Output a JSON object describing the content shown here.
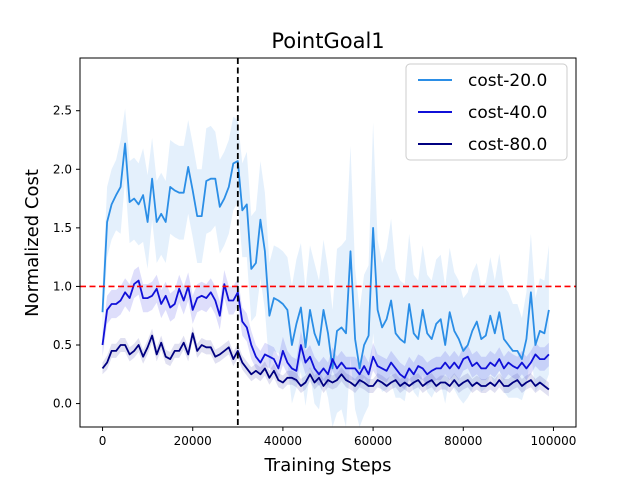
{
  "chart_data": {
    "type": "line",
    "title": "PointGoal1",
    "xlabel": "Training Steps",
    "ylabel": "Normalized Cost",
    "xlim": [
      -5000,
      105000
    ],
    "ylim": [
      -0.2,
      2.95
    ],
    "x_ticks": [
      0,
      20000,
      40000,
      60000,
      80000,
      100000
    ],
    "x_tick_labels": [
      "0",
      "20000",
      "40000",
      "60000",
      "80000",
      "100000"
    ],
    "y_ticks": [
      0.0,
      0.5,
      1.0,
      1.5,
      2.0,
      2.5
    ],
    "y_tick_labels": [
      "0.0",
      "0.5",
      "1.0",
      "1.5",
      "2.0",
      "2.5"
    ],
    "grid": false,
    "legend_position": "top-right",
    "threshold": {
      "y": 1.0,
      "color": "#ff0000",
      "style": "dashed"
    },
    "vertical_marker": {
      "x": 30000,
      "color": "#000000",
      "style": "dashed"
    },
    "series": [
      {
        "name": "cost-20.0",
        "color": "#2b8ee6",
        "band_color": "#2b8ee6",
        "x": [
          0,
          1000,
          2000,
          3000,
          4000,
          5000,
          6000,
          7000,
          8000,
          9000,
          10000,
          11000,
          12000,
          13000,
          14000,
          15000,
          16000,
          17000,
          18000,
          19000,
          20000,
          21000,
          22000,
          23000,
          24000,
          25000,
          26000,
          27000,
          28000,
          29000,
          30000,
          31000,
          32000,
          33000,
          34000,
          35000,
          36000,
          37000,
          38000,
          39000,
          40000,
          41000,
          42000,
          43000,
          44000,
          45000,
          46000,
          47000,
          48000,
          49000,
          50000,
          51000,
          52000,
          53000,
          54000,
          55000,
          56000,
          57000,
          58000,
          59000,
          60000,
          61000,
          62000,
          63000,
          64000,
          65000,
          66000,
          67000,
          68000,
          69000,
          70000,
          71000,
          72000,
          73000,
          74000,
          75000,
          76000,
          77000,
          78000,
          79000,
          80000,
          81000,
          82000,
          83000,
          84000,
          85000,
          86000,
          87000,
          88000,
          89000,
          90000,
          91000,
          92000,
          93000,
          94000,
          95000,
          96000,
          97000,
          98000,
          99000
        ],
        "values": [
          0.78,
          1.55,
          1.7,
          1.78,
          1.85,
          2.22,
          1.72,
          1.75,
          1.7,
          1.78,
          1.55,
          1.92,
          1.55,
          1.62,
          1.55,
          1.85,
          1.82,
          1.8,
          1.8,
          2.02,
          1.82,
          1.6,
          1.6,
          1.9,
          1.92,
          1.92,
          1.68,
          1.75,
          1.85,
          2.05,
          2.07,
          1.65,
          1.7,
          1.15,
          1.2,
          1.57,
          1.3,
          0.75,
          0.9,
          0.88,
          0.85,
          0.8,
          0.5,
          0.68,
          0.82,
          0.48,
          0.8,
          0.6,
          0.5,
          0.8,
          0.6,
          0.3,
          0.62,
          0.65,
          0.6,
          1.3,
          0.55,
          0.3,
          0.5,
          0.58,
          1.5,
          0.8,
          0.65,
          0.72,
          0.88,
          0.6,
          0.55,
          0.52,
          0.85,
          0.6,
          0.55,
          0.8,
          0.6,
          0.55,
          0.68,
          0.72,
          0.5,
          0.78,
          0.62,
          0.55,
          0.45,
          0.5,
          0.62,
          0.7,
          0.55,
          0.58,
          0.75,
          0.6,
          0.78,
          0.55,
          0.5,
          0.45,
          0.45,
          0.38,
          0.55,
          0.95,
          0.5,
          0.62,
          0.6,
          0.8
        ],
        "band_halfwidth": [
          0.2,
          0.3,
          0.3,
          0.3,
          0.4,
          0.3,
          0.35,
          0.35,
          0.35,
          0.4,
          0.4,
          0.35,
          0.35,
          0.35,
          0.35,
          0.4,
          0.4,
          0.4,
          0.4,
          0.4,
          0.4,
          0.4,
          0.4,
          0.45,
          0.45,
          0.4,
          0.4,
          0.4,
          0.4,
          0.4,
          0.35,
          0.4,
          0.45,
          0.45,
          0.45,
          0.5,
          0.5,
          0.45,
          0.45,
          0.45,
          0.45,
          0.45,
          0.5,
          0.55,
          0.55,
          0.5,
          0.55,
          0.6,
          0.55,
          0.6,
          0.55,
          0.5,
          0.7,
          0.7,
          0.8,
          0.9,
          0.6,
          0.5,
          0.6,
          0.6,
          0.9,
          0.6,
          0.55,
          0.6,
          0.7,
          0.55,
          0.5,
          0.5,
          0.6,
          0.5,
          0.5,
          0.55,
          0.5,
          0.5,
          0.55,
          0.55,
          0.5,
          0.55,
          0.5,
          0.5,
          0.45,
          0.45,
          0.5,
          0.5,
          0.45,
          0.45,
          0.5,
          0.45,
          0.5,
          0.45,
          0.45,
          0.4,
          0.4,
          0.35,
          0.4,
          0.5,
          0.4,
          0.45,
          0.45,
          0.55
        ]
      },
      {
        "name": "cost-40.0",
        "color": "#1010d8",
        "band_color": "#3333e6",
        "x": [
          0,
          1000,
          2000,
          3000,
          4000,
          5000,
          6000,
          7000,
          8000,
          9000,
          10000,
          11000,
          12000,
          13000,
          14000,
          15000,
          16000,
          17000,
          18000,
          19000,
          20000,
          21000,
          22000,
          23000,
          24000,
          25000,
          26000,
          27000,
          28000,
          29000,
          30000,
          31000,
          32000,
          33000,
          34000,
          35000,
          36000,
          37000,
          38000,
          39000,
          40000,
          41000,
          42000,
          43000,
          44000,
          45000,
          46000,
          47000,
          48000,
          49000,
          50000,
          51000,
          52000,
          53000,
          54000,
          55000,
          56000,
          57000,
          58000,
          59000,
          60000,
          61000,
          62000,
          63000,
          64000,
          65000,
          66000,
          67000,
          68000,
          69000,
          70000,
          71000,
          72000,
          73000,
          74000,
          75000,
          76000,
          77000,
          78000,
          79000,
          80000,
          81000,
          82000,
          83000,
          84000,
          85000,
          86000,
          87000,
          88000,
          89000,
          90000,
          91000,
          92000,
          93000,
          94000,
          95000,
          96000,
          97000,
          98000,
          99000
        ],
        "values": [
          0.5,
          0.8,
          0.85,
          0.85,
          0.88,
          0.95,
          0.9,
          1.02,
          1.05,
          0.9,
          0.9,
          0.92,
          0.98,
          0.85,
          0.92,
          0.82,
          0.85,
          0.98,
          0.88,
          1.0,
          0.8,
          0.9,
          0.92,
          0.9,
          0.95,
          0.88,
          0.75,
          1.02,
          0.88,
          0.88,
          0.95,
          0.7,
          0.65,
          0.5,
          0.4,
          0.35,
          0.42,
          0.4,
          0.38,
          0.3,
          0.45,
          0.35,
          0.3,
          0.28,
          0.5,
          0.35,
          0.4,
          0.3,
          0.25,
          0.3,
          0.25,
          0.38,
          0.3,
          0.35,
          0.3,
          0.3,
          0.3,
          0.25,
          0.32,
          0.25,
          0.4,
          0.32,
          0.3,
          0.28,
          0.35,
          0.3,
          0.25,
          0.22,
          0.3,
          0.25,
          0.32,
          0.3,
          0.25,
          0.28,
          0.3,
          0.3,
          0.35,
          0.3,
          0.35,
          0.3,
          0.38,
          0.4,
          0.32,
          0.35,
          0.3,
          0.3,
          0.35,
          0.32,
          0.38,
          0.3,
          0.35,
          0.32,
          0.3,
          0.35,
          0.3,
          0.35,
          0.42,
          0.38,
          0.38,
          0.42
        ],
        "band_halfwidth": [
          0.1,
          0.12,
          0.12,
          0.12,
          0.12,
          0.12,
          0.12,
          0.12,
          0.12,
          0.12,
          0.12,
          0.12,
          0.12,
          0.12,
          0.12,
          0.12,
          0.12,
          0.12,
          0.12,
          0.12,
          0.12,
          0.12,
          0.12,
          0.12,
          0.12,
          0.12,
          0.12,
          0.12,
          0.12,
          0.12,
          0.12,
          0.12,
          0.12,
          0.12,
          0.1,
          0.1,
          0.1,
          0.1,
          0.1,
          0.1,
          0.12,
          0.1,
          0.1,
          0.1,
          0.12,
          0.1,
          0.1,
          0.1,
          0.1,
          0.1,
          0.1,
          0.1,
          0.1,
          0.1,
          0.1,
          0.1,
          0.1,
          0.1,
          0.1,
          0.1,
          0.12,
          0.1,
          0.1,
          0.1,
          0.1,
          0.1,
          0.1,
          0.1,
          0.1,
          0.1,
          0.1,
          0.1,
          0.1,
          0.1,
          0.1,
          0.1,
          0.1,
          0.1,
          0.1,
          0.1,
          0.1,
          0.1,
          0.1,
          0.1,
          0.1,
          0.1,
          0.1,
          0.1,
          0.1,
          0.1,
          0.1,
          0.1,
          0.1,
          0.1,
          0.1,
          0.1,
          0.1,
          0.1,
          0.1,
          0.1
        ]
      },
      {
        "name": "cost-80.0",
        "color": "#000080",
        "band_color": "#3c3ca8",
        "x": [
          0,
          1000,
          2000,
          3000,
          4000,
          5000,
          6000,
          7000,
          8000,
          9000,
          10000,
          11000,
          12000,
          13000,
          14000,
          15000,
          16000,
          17000,
          18000,
          19000,
          20000,
          21000,
          22000,
          23000,
          24000,
          25000,
          26000,
          27000,
          28000,
          29000,
          30000,
          31000,
          32000,
          33000,
          34000,
          35000,
          36000,
          37000,
          38000,
          39000,
          40000,
          41000,
          42000,
          43000,
          44000,
          45000,
          46000,
          47000,
          48000,
          49000,
          50000,
          51000,
          52000,
          53000,
          54000,
          55000,
          56000,
          57000,
          58000,
          59000,
          60000,
          61000,
          62000,
          63000,
          64000,
          65000,
          66000,
          67000,
          68000,
          69000,
          70000,
          71000,
          72000,
          73000,
          74000,
          75000,
          76000,
          77000,
          78000,
          79000,
          80000,
          81000,
          82000,
          83000,
          84000,
          85000,
          86000,
          87000,
          88000,
          89000,
          90000,
          91000,
          92000,
          93000,
          94000,
          95000,
          96000,
          97000,
          98000,
          99000
        ],
        "values": [
          0.3,
          0.35,
          0.45,
          0.45,
          0.5,
          0.5,
          0.42,
          0.45,
          0.5,
          0.4,
          0.48,
          0.58,
          0.42,
          0.52,
          0.4,
          0.38,
          0.45,
          0.45,
          0.52,
          0.42,
          0.6,
          0.45,
          0.5,
          0.48,
          0.48,
          0.4,
          0.42,
          0.45,
          0.48,
          0.38,
          0.45,
          0.35,
          0.3,
          0.25,
          0.28,
          0.25,
          0.3,
          0.22,
          0.28,
          0.2,
          0.18,
          0.22,
          0.22,
          0.2,
          0.15,
          0.18,
          0.25,
          0.18,
          0.22,
          0.15,
          0.2,
          0.18,
          0.2,
          0.25,
          0.2,
          0.18,
          0.15,
          0.2,
          0.18,
          0.15,
          0.15,
          0.2,
          0.18,
          0.15,
          0.18,
          0.2,
          0.15,
          0.18,
          0.15,
          0.18,
          0.2,
          0.15,
          0.18,
          0.2,
          0.15,
          0.18,
          0.18,
          0.15,
          0.2,
          0.15,
          0.18,
          0.2,
          0.15,
          0.18,
          0.15,
          0.15,
          0.18,
          0.15,
          0.2,
          0.15,
          0.15,
          0.18,
          0.2,
          0.15,
          0.18,
          0.2,
          0.15,
          0.18,
          0.15,
          0.12
        ],
        "band_halfwidth": [
          0.05,
          0.06,
          0.06,
          0.06,
          0.06,
          0.06,
          0.06,
          0.06,
          0.06,
          0.06,
          0.06,
          0.06,
          0.06,
          0.06,
          0.06,
          0.06,
          0.06,
          0.06,
          0.06,
          0.06,
          0.06,
          0.06,
          0.06,
          0.06,
          0.06,
          0.06,
          0.06,
          0.06,
          0.06,
          0.06,
          0.06,
          0.06,
          0.06,
          0.06,
          0.06,
          0.06,
          0.06,
          0.06,
          0.06,
          0.06,
          0.06,
          0.06,
          0.06,
          0.06,
          0.06,
          0.06,
          0.06,
          0.06,
          0.06,
          0.06,
          0.06,
          0.06,
          0.06,
          0.06,
          0.06,
          0.06,
          0.06,
          0.06,
          0.06,
          0.06,
          0.06,
          0.06,
          0.06,
          0.06,
          0.06,
          0.06,
          0.06,
          0.06,
          0.06,
          0.06,
          0.06,
          0.06,
          0.06,
          0.06,
          0.06,
          0.06,
          0.06,
          0.06,
          0.06,
          0.06,
          0.06,
          0.06,
          0.06,
          0.06,
          0.06,
          0.06,
          0.06,
          0.06,
          0.06,
          0.06,
          0.06,
          0.06,
          0.06,
          0.06,
          0.06,
          0.06,
          0.06,
          0.06,
          0.06,
          0.06
        ]
      }
    ]
  }
}
